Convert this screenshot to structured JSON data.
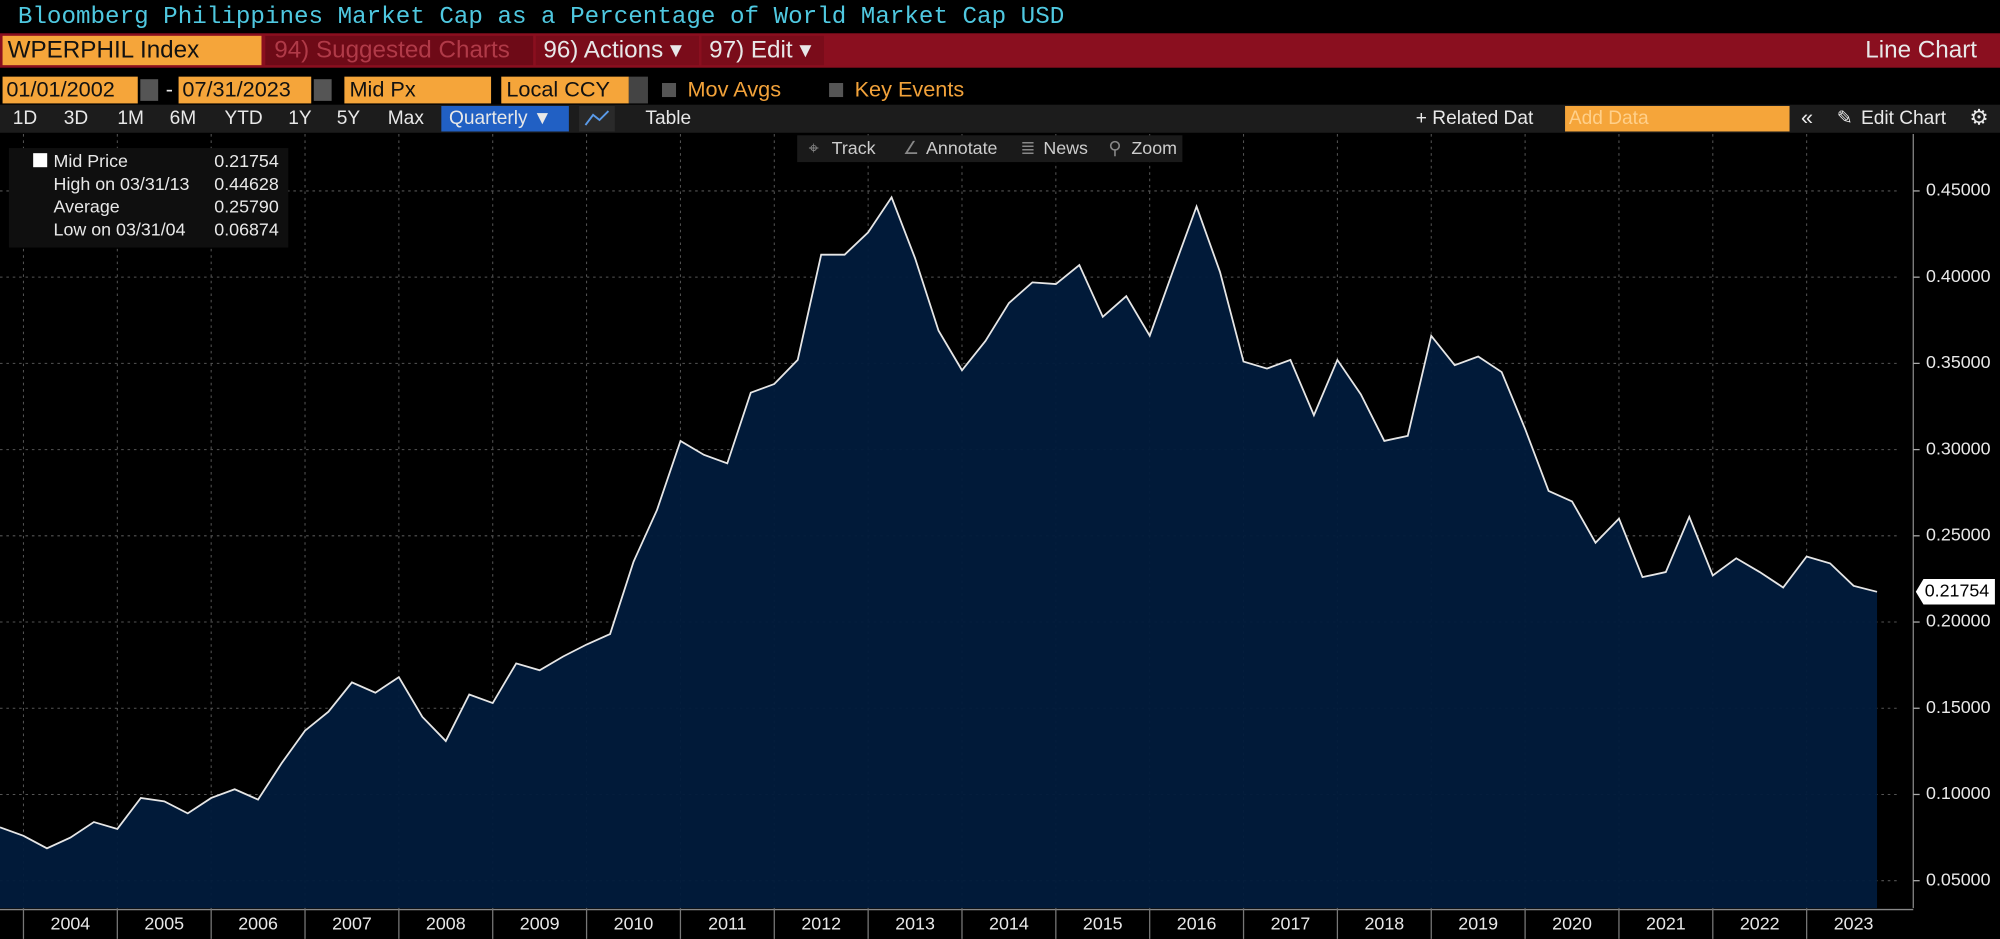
{
  "header": {
    "title": "Bloomberg Philippines Market Cap as a Percentage of World Market Cap USD"
  },
  "toolbar": {
    "ticker": "WPERPHIL Index",
    "menu": [
      "94) Suggested Charts",
      "96) Actions ▾",
      "97) Edit ▾"
    ],
    "chart_kind": "Line Chart"
  },
  "controls": {
    "start": "01/01/2002",
    "dash": "-",
    "end": "07/31/2023",
    "field": "Mid Px",
    "currency": "Local CCY",
    "options": [
      "Mov Avgs",
      "Key Events"
    ]
  },
  "ranges": [
    "1D",
    "3D",
    "1M",
    "6M",
    "YTD",
    "1Y",
    "5Y",
    "Max"
  ],
  "period": "Quarterly ▼",
  "table": "Table",
  "related": "+ Related Dat",
  "add_data": "Add Data",
  "edit_chart": "Edit Chart",
  "tools": [
    "Track",
    "Annotate",
    "News",
    "Zoom"
  ],
  "legend": [
    {
      "label": "Mid Price",
      "value": "0.21754"
    },
    {
      "label": "High on 03/31/13",
      "value": "0.44628"
    },
    {
      "label": "Average",
      "value": "0.25790"
    },
    {
      "label": "Low on 03/31/04",
      "value": "0.06874"
    }
  ],
  "chart_data": {
    "type": "area",
    "x": [
      2003.75,
      2004,
      2004.25,
      2004.5,
      2004.75,
      2005,
      2005.25,
      2005.5,
      2005.75,
      2006,
      2006.25,
      2006.5,
      2006.75,
      2007,
      2007.25,
      2007.5,
      2007.75,
      2008,
      2008.25,
      2008.5,
      2008.75,
      2009,
      2009.25,
      2009.5,
      2009.75,
      2010,
      2010.25,
      2010.5,
      2010.75,
      2011,
      2011.25,
      2011.5,
      2011.75,
      2012,
      2012.25,
      2012.5,
      2012.75,
      2013,
      2013.25,
      2013.5,
      2013.75,
      2014,
      2014.25,
      2014.5,
      2014.75,
      2015,
      2015.25,
      2015.5,
      2015.75,
      2016,
      2016.25,
      2016.5,
      2016.75,
      2017,
      2017.25,
      2017.5,
      2017.75,
      2018,
      2018.25,
      2018.5,
      2018.75,
      2019,
      2019.25,
      2019.5,
      2019.75,
      2020,
      2020.25,
      2020.5,
      2020.75,
      2021,
      2021.25,
      2021.5,
      2021.75,
      2022,
      2022.25,
      2022.5,
      2022.75,
      2023,
      2023.25,
      2023.5,
      2023.75
    ],
    "values": [
      0.081,
      0.076,
      0.06874,
      0.075,
      0.084,
      0.08,
      0.098,
      0.096,
      0.089,
      0.098,
      0.103,
      0.097,
      0.118,
      0.137,
      0.148,
      0.165,
      0.159,
      0.168,
      0.145,
      0.131,
      0.158,
      0.153,
      0.176,
      0.172,
      0.18,
      0.187,
      0.193,
      0.235,
      0.265,
      0.305,
      0.297,
      0.292,
      0.333,
      0.338,
      0.352,
      0.413,
      0.413,
      0.426,
      0.44628,
      0.411,
      0.369,
      0.346,
      0.363,
      0.385,
      0.397,
      0.396,
      0.407,
      0.377,
      0.389,
      0.366,
      0.404,
      0.441,
      0.403,
      0.351,
      0.347,
      0.352,
      0.32,
      0.352,
      0.332,
      0.305,
      0.308,
      0.366,
      0.349,
      0.354,
      0.345,
      0.312,
      0.276,
      0.27,
      0.246,
      0.26,
      0.226,
      0.229,
      0.261,
      0.227,
      0.237,
      0.229,
      0.22,
      0.238,
      0.234,
      0.221,
      0.21754
    ],
    "color": "#e6e6e6",
    "fill": "#011b3c",
    "xlim": [
      2003.75,
      2024
    ],
    "xticks": [
      2004,
      2005,
      2006,
      2007,
      2008,
      2009,
      2010,
      2011,
      2012,
      2013,
      2014,
      2015,
      2016,
      2017,
      2018,
      2019,
      2020,
      2021,
      2022,
      2023
    ],
    "ylim": [
      0.034,
      0.483
    ],
    "yticks": [
      {
        "value": 0.05,
        "label": "0.05000"
      },
      {
        "value": 0.1,
        "label": "0.10000"
      },
      {
        "value": 0.15,
        "label": "0.15000"
      },
      {
        "value": 0.2,
        "label": "0.20000"
      },
      {
        "value": 0.25,
        "label": "0.25000"
      },
      {
        "value": 0.3,
        "label": "0.30000"
      },
      {
        "value": 0.35,
        "label": "0.35000"
      },
      {
        "value": 0.4,
        "label": "0.40000"
      },
      {
        "value": 0.45,
        "label": "0.45000"
      }
    ],
    "grid": true
  }
}
